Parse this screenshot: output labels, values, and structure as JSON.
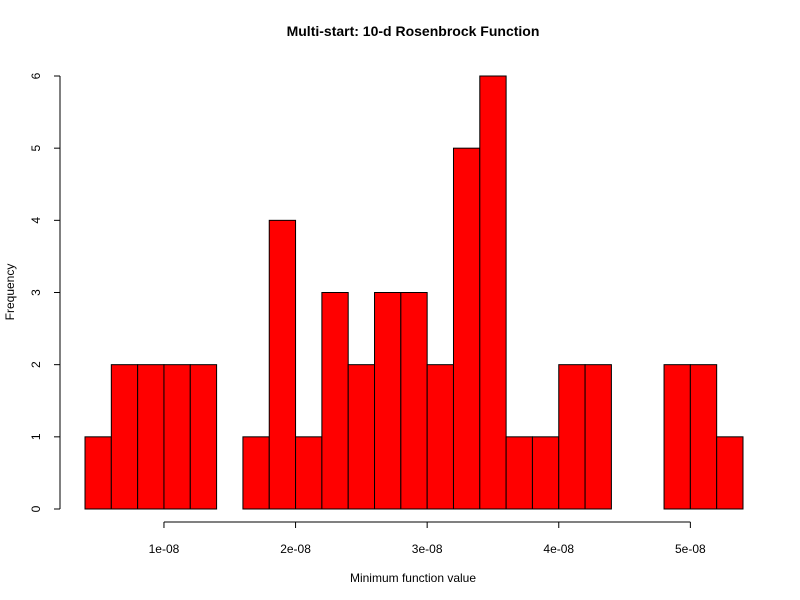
{
  "chart_data": {
    "type": "bar",
    "title": "Multi-start: 10-d Rosenbrock Function",
    "xlabel": "Minimum function value",
    "ylabel": "Frequency",
    "bin_edges": [
      4e-09,
      6e-09,
      8e-09,
      1e-08,
      1.2e-08,
      1.4e-08,
      1.6e-08,
      1.8e-08,
      2e-08,
      2.2e-08,
      2.4e-08,
      2.6e-08,
      2.8e-08,
      3e-08,
      3.2e-08,
      3.4e-08,
      3.6e-08,
      3.8e-08,
      4e-08,
      4.2e-08,
      4.4e-08,
      4.6e-08,
      4.8e-08,
      5e-08,
      5.2e-08,
      5.4e-08
    ],
    "values": [
      1,
      2,
      2,
      2,
      2,
      0,
      1,
      4,
      1,
      3,
      2,
      3,
      3,
      2,
      5,
      6,
      1,
      1,
      2,
      2,
      0,
      0,
      2,
      2,
      1
    ],
    "xticks": [
      1e-08,
      2e-08,
      3e-08,
      4e-08,
      5e-08
    ],
    "xtick_labels": [
      "1e-08",
      "2e-08",
      "3e-08",
      "4e-08",
      "5e-08"
    ],
    "yticks": [
      0,
      1,
      2,
      3,
      4,
      5,
      6
    ],
    "ytick_labels": [
      "0",
      "1",
      "2",
      "3",
      "4",
      "5",
      "6"
    ],
    "xlim": [
      4e-09,
      5.4e-08
    ],
    "ylim": [
      0,
      6
    ],
    "grid": false,
    "bar_color": "#ff0000",
    "edge_color": "#000000"
  }
}
